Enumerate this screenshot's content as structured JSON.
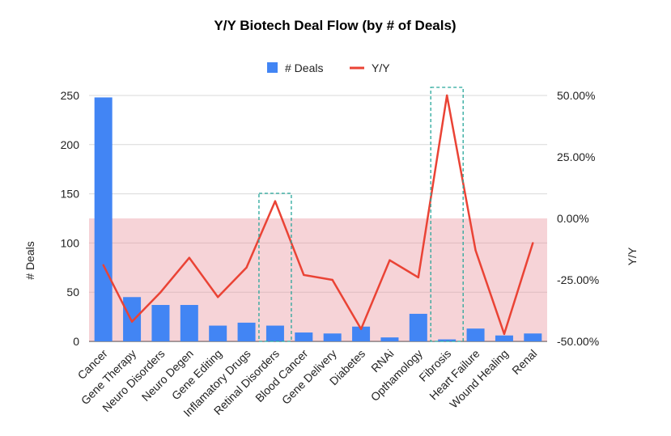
{
  "chart_data": {
    "type": "bar+line",
    "title": "Y/Y Biotech Deal Flow (by # of Deals)",
    "categories": [
      "Cancer",
      "Gene Therapy",
      "Neuro Disorders",
      "Neuro Degen",
      "Gene Editing",
      "Inflamatory Drugs",
      "Retinal Disorders",
      "Blood Cancer",
      "Gene Delivery",
      "Diabetes",
      "RNAi",
      "Opthamology",
      "Fibrosis",
      "Heart Failure",
      "Wound Healing",
      "Renal"
    ],
    "series": [
      {
        "name": "# Deals",
        "kind": "bar",
        "axis": "left",
        "color": "#4285f4",
        "values": [
          248,
          45,
          37,
          37,
          16,
          19,
          16,
          9,
          8,
          15,
          4,
          28,
          2,
          13,
          6,
          8
        ]
      },
      {
        "name": "Y/Y",
        "kind": "line",
        "axis": "right",
        "color": "#ea4335",
        "values": [
          -19,
          -42,
          -30,
          -16,
          -32,
          -20,
          7,
          -23,
          -25,
          -45,
          -17,
          -24,
          50,
          -13,
          -47,
          -10
        ]
      }
    ],
    "left_axis": {
      "label": "# Deals",
      "min": 0,
      "max": 250,
      "ticks": [
        "0",
        "50",
        "100",
        "150",
        "200",
        "250"
      ]
    },
    "right_axis": {
      "label": "Y/Y",
      "min": -50,
      "max": 50,
      "ticks": [
        "-50.00%",
        "-25.00%",
        "0.00%",
        "25.00%",
        "50.00%"
      ]
    },
    "legend": {
      "position": "top",
      "items": [
        "# Deals",
        "Y/Y"
      ]
    },
    "annotations": [
      {
        "type": "band",
        "axis": "right",
        "from": -50,
        "to": 0,
        "color": "#f4c7cc"
      },
      {
        "type": "dashed-box",
        "category": "Retinal Disorders",
        "color": "#26a69a"
      },
      {
        "type": "dashed-box",
        "category": "Fibrosis",
        "color": "#26a69a"
      }
    ],
    "grid": true
  }
}
